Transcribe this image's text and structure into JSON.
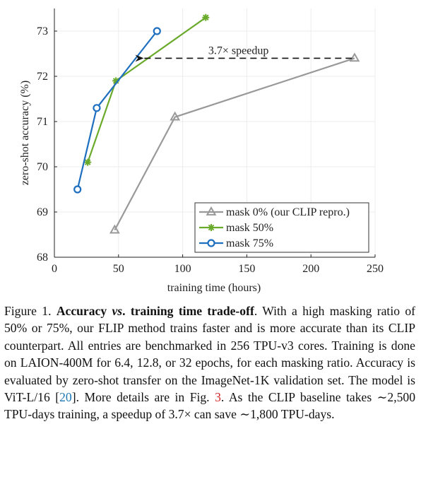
{
  "chart_data": {
    "type": "line",
    "xlabel": "training time (hours)",
    "ylabel": "zero-shot accuracy (%)",
    "xlim": [
      0,
      250
    ],
    "ylim": [
      68,
      73.5
    ],
    "xticks": [
      0,
      50,
      100,
      150,
      200,
      250
    ],
    "yticks": [
      68,
      69,
      70,
      71,
      72,
      73
    ],
    "grid": true,
    "legend_position": "bottom-right",
    "series": [
      {
        "name": "mask 0% (our CLIP repro.)",
        "marker": "triangle",
        "color": "#999999",
        "x": [
          47,
          94,
          234
        ],
        "y": [
          68.6,
          71.1,
          72.4
        ]
      },
      {
        "name": "mask 50%",
        "marker": "star",
        "color": "#6aaa2a",
        "x": [
          26,
          48,
          118
        ],
        "y": [
          70.1,
          71.9,
          73.3
        ]
      },
      {
        "name": "mask 75%",
        "marker": "circle",
        "color": "#1f6fc0",
        "x": [
          18,
          33,
          80
        ],
        "y": [
          69.5,
          71.3,
          73.0
        ]
      }
    ],
    "annotation": {
      "text": "3.7× speedup",
      "from": [
        232,
        72.4
      ],
      "to": [
        63,
        72.4
      ]
    }
  },
  "caption": {
    "label": "Figure 1.",
    "title_pre": "Accuracy ",
    "title_vs": "vs",
    "title_post": ". training time trade-off",
    "text1": ". With a high masking ratio of 50% or 75%, our FLIP method trains faster and is more accurate than its CLIP counterpart. All entries are benchmarked in 256 TPU-v3 cores. Training is done on LAION-400M for 6.4, 12.8, or 32 epochs, for each masking ratio. Accuracy is evaluated by zero-shot transfer on the ImageNet-1K validation set. The model is ViT-L/16 [",
    "ref1": "20",
    "text2": "]. More details are in Fig. ",
    "ref2": "3",
    "text3": ". As the CLIP baseline takes ∼2,500 TPU-days training, a speedup of 3.7× can save ∼1,800 TPU-days."
  }
}
